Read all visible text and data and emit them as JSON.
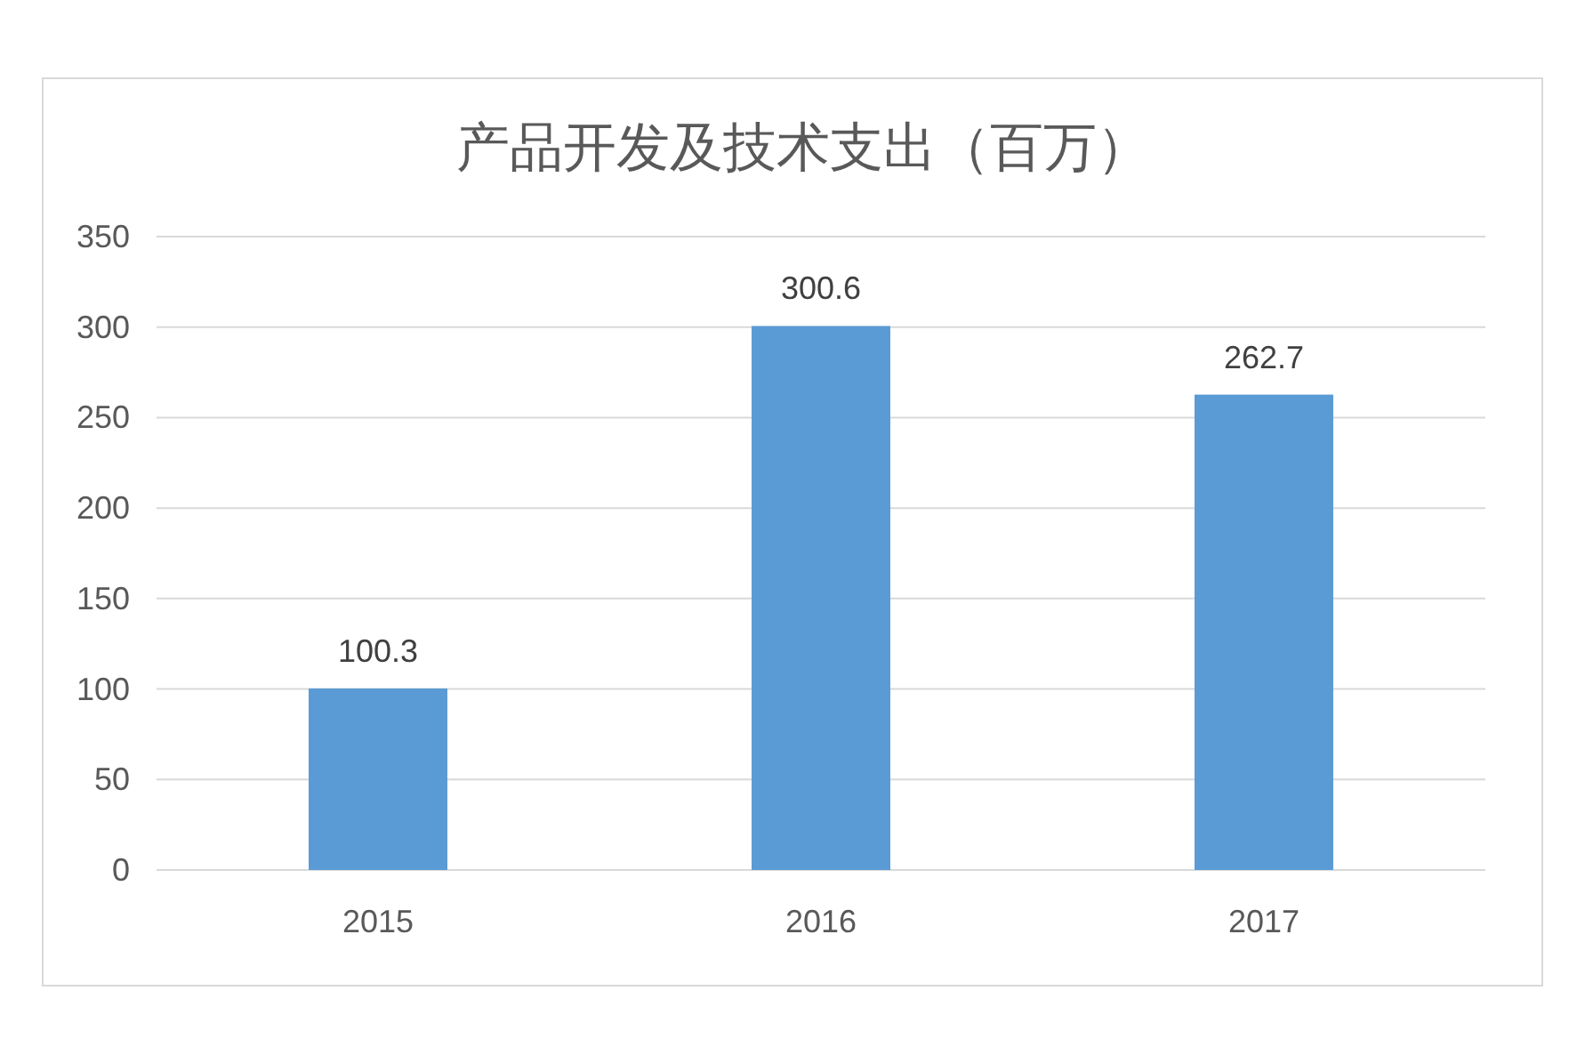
{
  "chart_data": {
    "type": "bar",
    "title": "产品开发及技术支出（百万）",
    "categories": [
      "2015",
      "2016",
      "2017"
    ],
    "values": [
      100.3,
      300.6,
      262.7
    ],
    "color": "#5b9bd5",
    "ylim": [
      0,
      350
    ],
    "yticks": [
      0,
      50,
      100,
      150,
      200,
      250,
      300,
      350
    ],
    "grid": "y",
    "data_labels": true
  }
}
